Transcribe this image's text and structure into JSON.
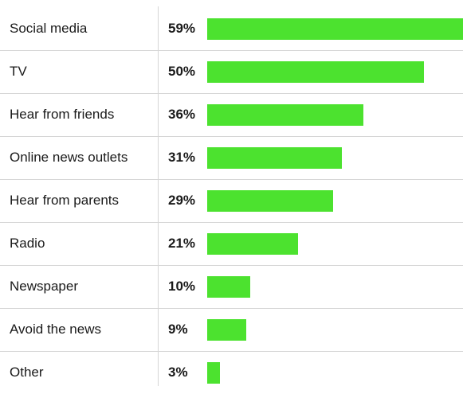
{
  "chart_data": {
    "type": "bar",
    "orientation": "horizontal",
    "categories": [
      "Social media",
      "TV",
      "Hear from friends",
      "Online news outlets",
      "Hear from parents",
      "Radio",
      "Newspaper",
      "Avoid the news",
      "Other"
    ],
    "values": [
      59,
      50,
      36,
      31,
      29,
      21,
      10,
      9,
      3
    ],
    "value_labels": [
      "59%",
      "50%",
      "36%",
      "31%",
      "29%",
      "21%",
      "10%",
      "9%",
      "3%"
    ],
    "xlim": [
      0,
      59
    ],
    "grid": false,
    "bar_color": "#4ce22f"
  }
}
